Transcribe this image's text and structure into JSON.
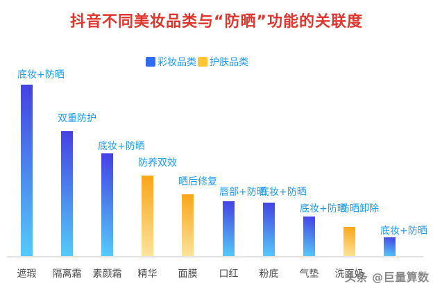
{
  "chart_data": {
    "type": "bar",
    "title": "抖音不同美妆品类与“防晒”功能的关联度",
    "title_color": "#e0342d",
    "annotation_color": "#1b9af2",
    "axis_label_color": "#4a4a4a",
    "grid": false,
    "legend_position": "top-center",
    "ylim": [
      0,
      100
    ],
    "value_note": "relative association strength, max bar = 100",
    "groups": {
      "makeup": {
        "label": "彩妆品类",
        "swatch": "#2e6bef",
        "gradient_top": "#4440e2",
        "gradient_bottom": "#55ccf9"
      },
      "skincare": {
        "label": "护肤品类",
        "swatch": "#ffc533",
        "gradient_top": "#f9a415",
        "gradient_bottom": "#fce59c"
      }
    },
    "legend": [
      {
        "group": "makeup",
        "label": "彩妆品类"
      },
      {
        "group": "skincare",
        "label": "护肤品类"
      }
    ],
    "categories": [
      "遮瑕",
      "隔离霜",
      "素颜霜",
      "精华",
      "面膜",
      "口红",
      "粉底",
      "气垫",
      "洗面奶",
      ""
    ],
    "bars": [
      {
        "category": "遮瑕",
        "group": "makeup",
        "annotation": "底妆+防晒",
        "value": 100
      },
      {
        "category": "隔离霜",
        "group": "makeup",
        "annotation": "双重防护",
        "value": 73
      },
      {
        "category": "素颜霜",
        "group": "makeup",
        "annotation": "底妆+防晒",
        "value": 60
      },
      {
        "category": "精华",
        "group": "skincare",
        "annotation": "防养双效",
        "value": 47
      },
      {
        "category": "面膜",
        "group": "skincare",
        "annotation": "晒后修复",
        "value": 36
      },
      {
        "category": "口红",
        "group": "makeup",
        "annotation": "唇部+防晒",
        "value": 32
      },
      {
        "category": "粉底",
        "group": "makeup",
        "annotation": "底妆+防晒",
        "value": 31
      },
      {
        "category": "气垫",
        "group": "makeup",
        "annotation": "底妆+防晒",
        "value": 23
      },
      {
        "category": "洗面奶",
        "group": "skincare",
        "annotation": "防晒卸除",
        "value": 17
      },
      {
        "category": "",
        "group": "makeup",
        "annotation": "底妆+防晒",
        "value": 11
      }
    ]
  },
  "watermark": {
    "text": "头条 @巨量算数"
  }
}
